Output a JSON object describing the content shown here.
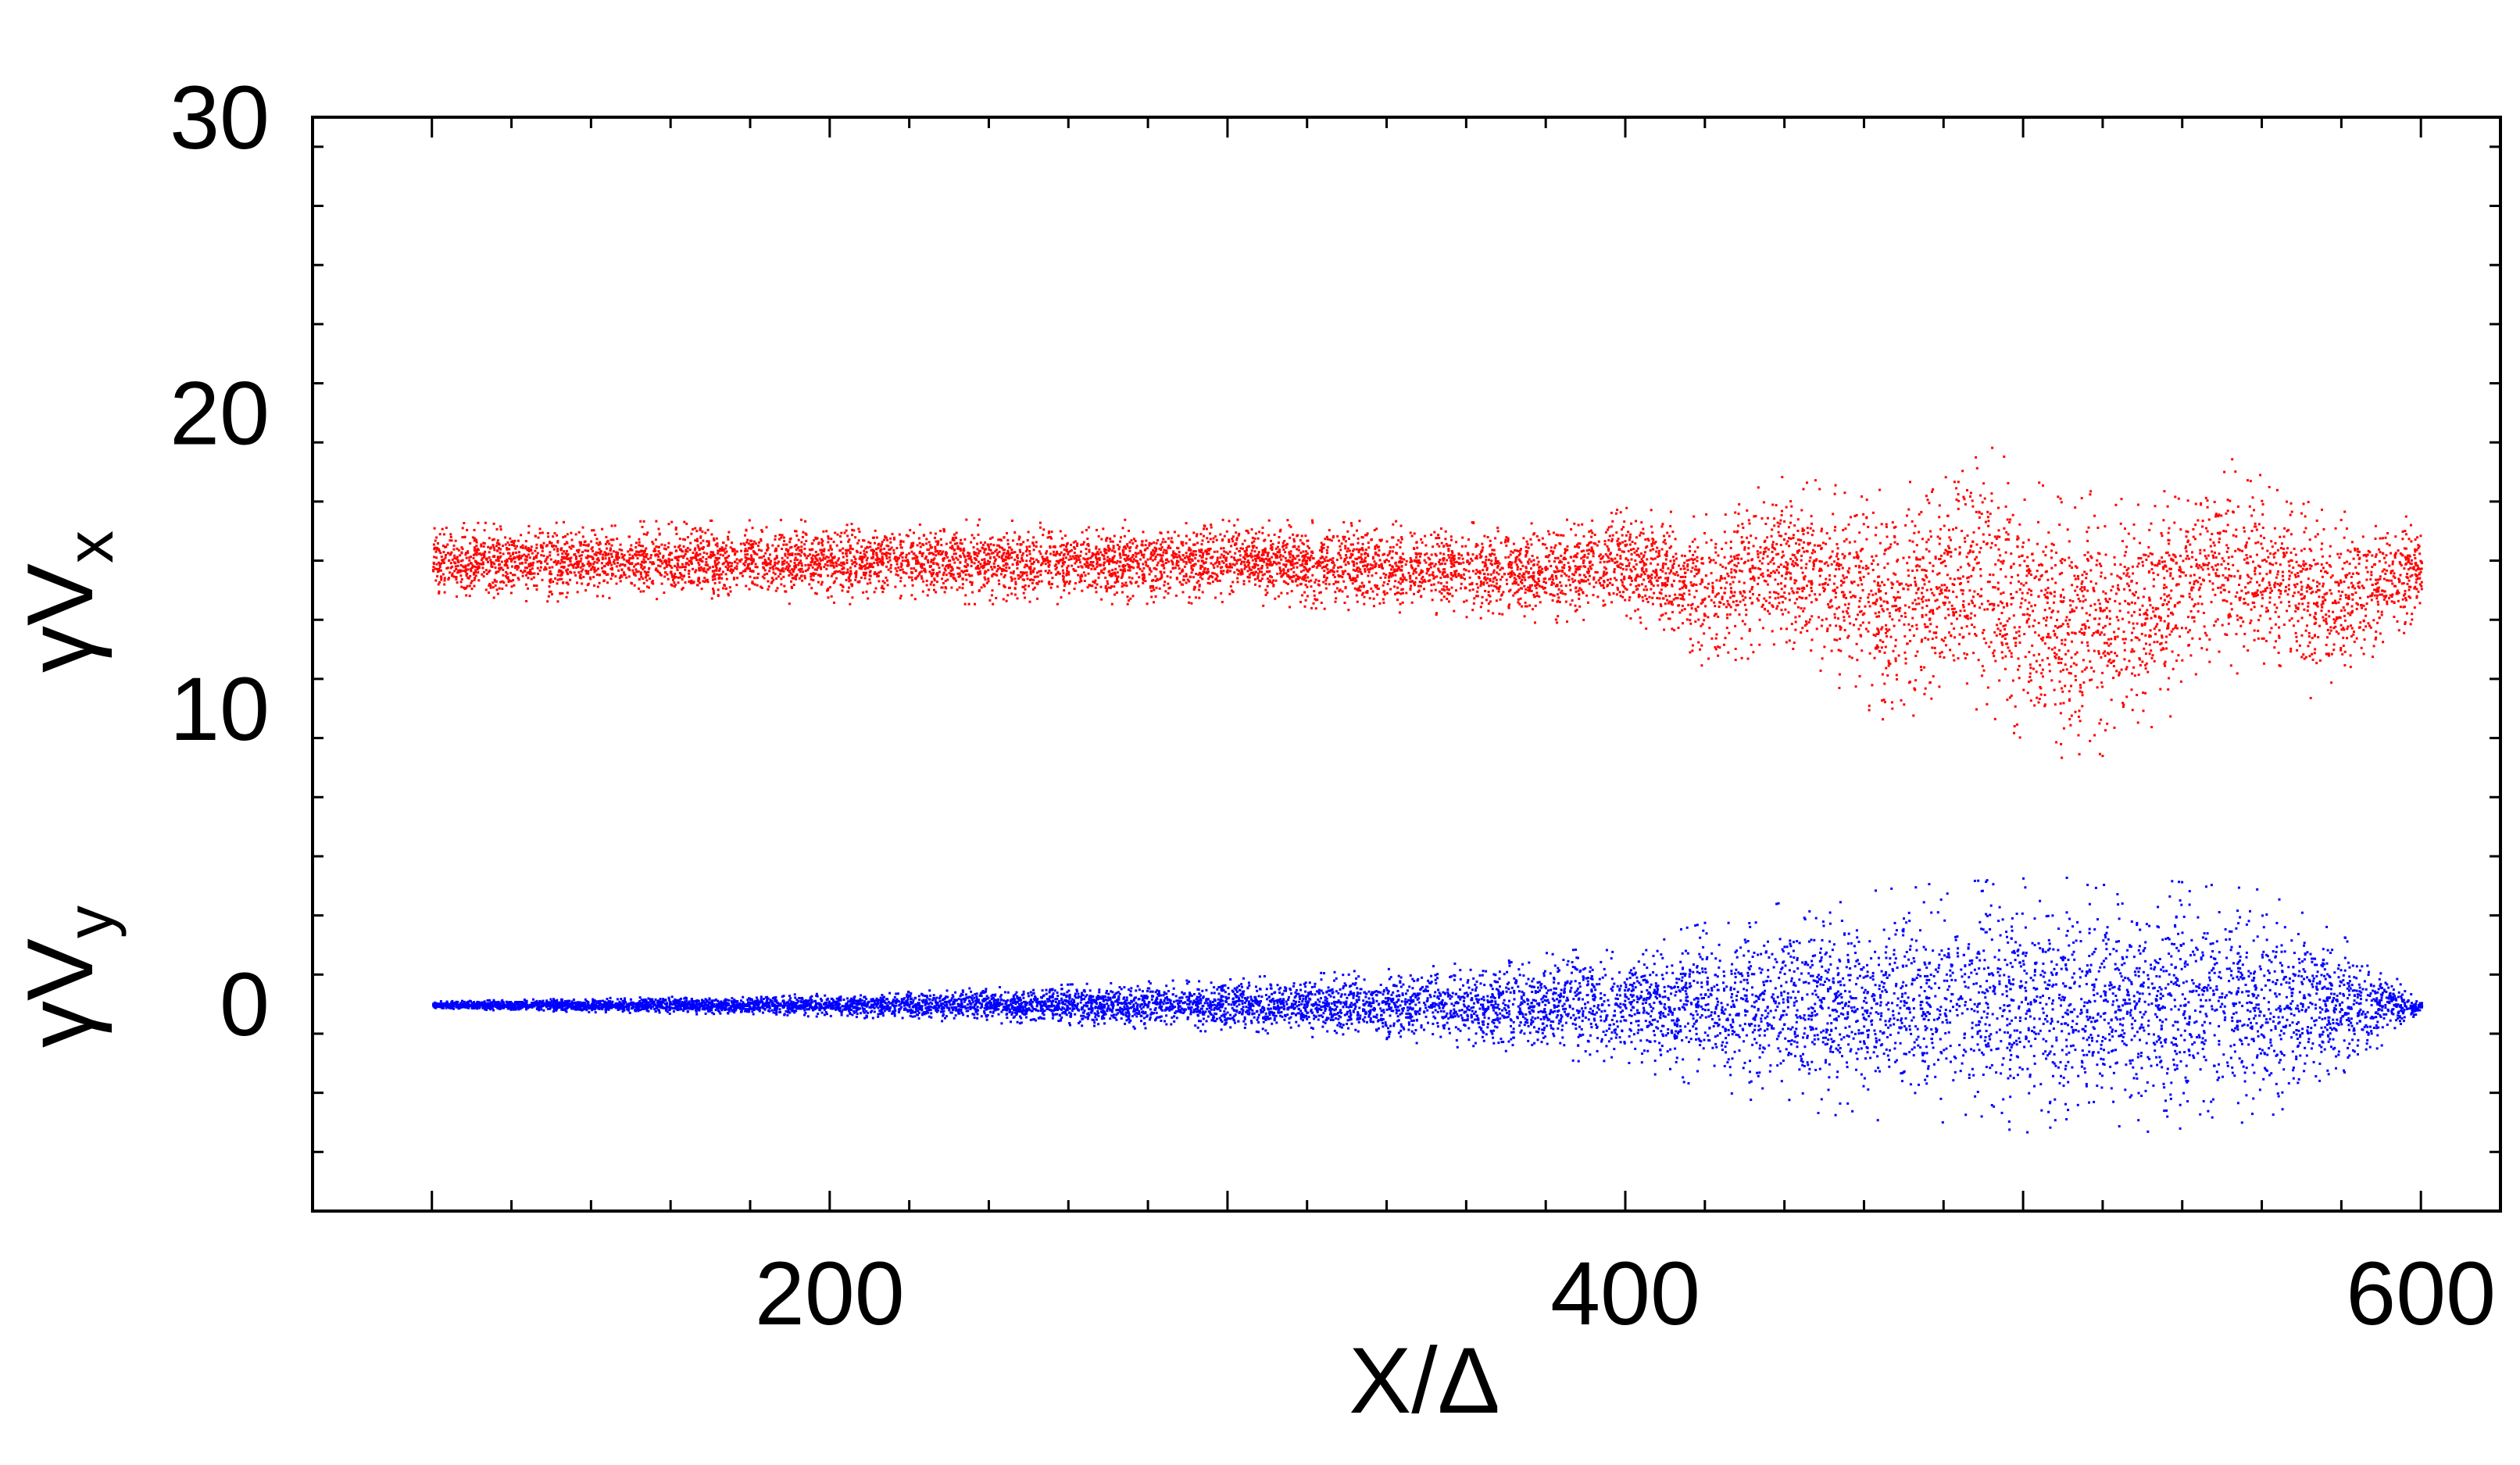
{
  "chart_data": {
    "type": "scatter",
    "title": "",
    "xlabel": "X/Δ",
    "ylabel_series": [
      {
        "label_main": "γV",
        "label_sub": "x"
      },
      {
        "label_main": "γV",
        "label_sub": "y"
      }
    ],
    "xlim": [
      70,
      620
    ],
    "ylim": [
      -7,
      30
    ],
    "x_ticks": [
      {
        "value": 200,
        "label": "200"
      },
      {
        "value": 400,
        "label": "400"
      },
      {
        "value": 600,
        "label": "600"
      }
    ],
    "y_ticks": [
      {
        "value": 0,
        "label": "0"
      },
      {
        "value": 10,
        "label": "10"
      },
      {
        "value": 20,
        "label": "20"
      },
      {
        "value": 30,
        "label": "30"
      }
    ],
    "grid": false,
    "legend": "none",
    "series": [
      {
        "key": "gamma_vx",
        "color": "#ff0000",
        "x_range": [
          100,
          600
        ],
        "envelope": [
          {
            "x": 100,
            "center": 15.0,
            "half_width": 1.0
          },
          {
            "x": 200,
            "center": 15.0,
            "half_width": 1.1
          },
          {
            "x": 300,
            "center": 15.0,
            "half_width": 1.1
          },
          {
            "x": 350,
            "center": 14.8,
            "half_width": 1.2
          },
          {
            "x": 380,
            "center": 14.6,
            "half_width": 1.3
          },
          {
            "x": 400,
            "center": 15.0,
            "half_width": 1.4
          },
          {
            "x": 420,
            "center": 14.0,
            "half_width": 2.0
          },
          {
            "x": 440,
            "center": 15.0,
            "half_width": 2.3
          },
          {
            "x": 465,
            "center": 13.5,
            "half_width": 3.0
          },
          {
            "x": 490,
            "center": 14.5,
            "half_width": 3.5
          },
          {
            "x": 510,
            "center": 12.5,
            "half_width": 3.5
          },
          {
            "x": 530,
            "center": 13.5,
            "half_width": 3.5
          },
          {
            "x": 550,
            "center": 15.0,
            "half_width": 2.8
          },
          {
            "x": 575,
            "center": 13.5,
            "half_width": 2.5
          },
          {
            "x": 600,
            "center": 14.8,
            "half_width": 1.3
          }
        ]
      },
      {
        "key": "gamma_vy",
        "color": "#0000ff",
        "x_range": [
          100,
          600
        ],
        "envelope": [
          {
            "x": 100,
            "center": 0.0,
            "half_width": 0.1
          },
          {
            "x": 200,
            "center": 0.0,
            "half_width": 0.3
          },
          {
            "x": 300,
            "center": 0.0,
            "half_width": 0.7
          },
          {
            "x": 350,
            "center": 0.0,
            "half_width": 1.0
          },
          {
            "x": 400,
            "center": 0.0,
            "half_width": 1.6
          },
          {
            "x": 440,
            "center": 0.0,
            "half_width": 2.7
          },
          {
            "x": 480,
            "center": 0.0,
            "half_width": 3.2
          },
          {
            "x": 520,
            "center": 0.0,
            "half_width": 3.4
          },
          {
            "x": 560,
            "center": 0.0,
            "half_width": 3.0
          },
          {
            "x": 585,
            "center": 0.0,
            "half_width": 1.5
          },
          {
            "x": 600,
            "center": 0.0,
            "half_width": 0.1
          }
        ]
      }
    ]
  }
}
